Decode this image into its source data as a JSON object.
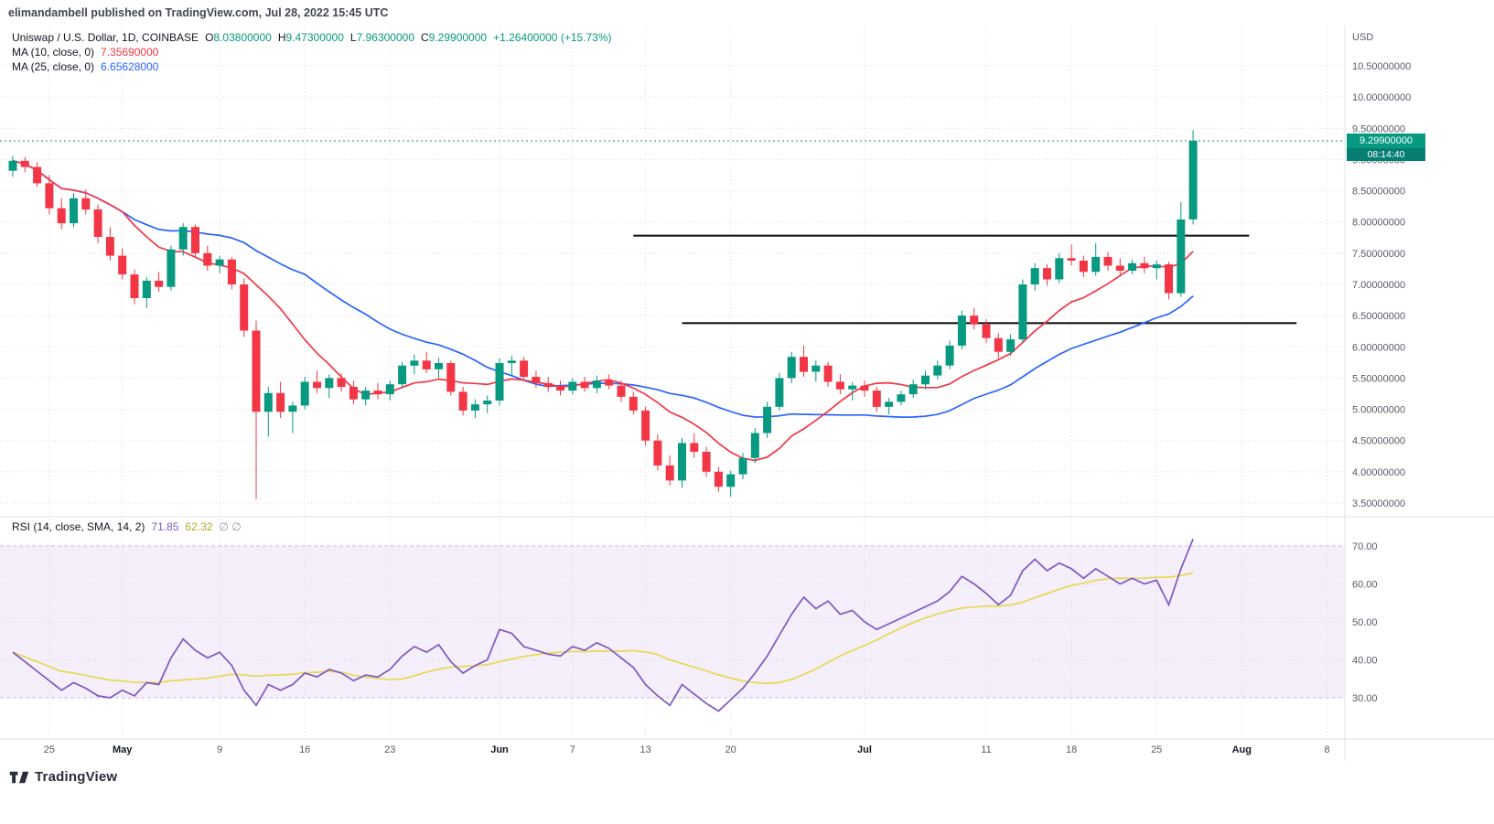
{
  "attribution": "elimandambell published on TradingView.com, Jul 28, 2022 15:45 UTC",
  "main_legend": {
    "symbol": "Uniswap / U.S. Dollar, 1D, COINBASE",
    "o_label": "O",
    "o": "8.03800000",
    "h_label": "H",
    "h": "9.47300000",
    "l_label": "L",
    "l": "7.96300000",
    "c_label": "C",
    "c": "9.29900000",
    "change": "+1.26400000 (+15.73%)",
    "ma10_label": "MA (10, close, 0)",
    "ma10_value": "7.35690000",
    "ma25_label": "MA (25, close, 0)",
    "ma25_value": "6.65628000"
  },
  "rsi_legend": {
    "label": "RSI (14, close, SMA, 14, 2)",
    "rsi_value": "71.85",
    "sma_value": "62.32",
    "extra": "∅ ∅"
  },
  "price_badge": {
    "price": "9.29900000",
    "countdown": "08:14:40"
  },
  "footer": {
    "brand": "TradingView"
  },
  "colors": {
    "up": "#089981",
    "down": "#f23645",
    "ma10": "#f23645",
    "ma25": "#2962ff",
    "rsi_line": "#7e57c2",
    "rsi_sma_line": "#e8d952",
    "rsi_band_fill": "#f4effa",
    "rsi_band_edge": "#c9b8e8",
    "grid": "#d7dae2",
    "border": "#e0e3eb",
    "trend_line": "#17181b",
    "axis_text": "#555a64",
    "axis_text_major": "#131722",
    "last_price_line": "#089981"
  },
  "chart_data": {
    "type": "candlestick",
    "title": "Uniswap / U.S. Dollar, 1D, COINBASE",
    "currency": "USD",
    "ohlc": {
      "open": 8.038,
      "high": 9.473,
      "low": 7.963,
      "close": 9.299,
      "change": 1.264,
      "change_pct": 15.73
    },
    "last_price": 9.299,
    "ylim": [
      3.5,
      10.5
    ],
    "price_axis": [
      "10.50000000",
      "10.00000000",
      "9.50000000",
      "9.00000000",
      "8.50000000",
      "8.00000000",
      "7.50000000",
      "7.00000000",
      "6.50000000",
      "6.00000000",
      "5.50000000",
      "5.00000000",
      "4.50000000",
      "4.00000000",
      "3.50000000"
    ],
    "rsi_axis": [
      "70.00",
      "60.00",
      "50.00",
      "40.00",
      "30.00"
    ],
    "time_axis": [
      {
        "i": 3,
        "label": "25"
      },
      {
        "i": 9,
        "label": "May",
        "major": true
      },
      {
        "i": 17,
        "label": "9"
      },
      {
        "i": 24,
        "label": "16"
      },
      {
        "i": 31,
        "label": "23"
      },
      {
        "i": 40,
        "label": "Jun",
        "major": true
      },
      {
        "i": 46,
        "label": "7"
      },
      {
        "i": 52,
        "label": "13"
      },
      {
        "i": 59,
        "label": "20"
      },
      {
        "i": 70,
        "label": "Jul",
        "major": true
      },
      {
        "i": 80,
        "label": "11"
      },
      {
        "i": 87,
        "label": "18"
      },
      {
        "i": 94,
        "label": "25"
      },
      {
        "i": 101,
        "label": "Aug",
        "major": true
      },
      {
        "i": 108,
        "label": "8"
      }
    ],
    "ma_overlays": [
      {
        "name": "MA 10",
        "period": 10,
        "value": 7.3569
      },
      {
        "name": "MA 25",
        "period": 25,
        "value": 6.65628
      }
    ],
    "trend_lines": [
      {
        "price": 7.78,
        "i1": 51,
        "i2": 101.6
      },
      {
        "price": 6.38,
        "i1": 55,
        "i2": 105.5
      }
    ],
    "rsi_current": 71.85,
    "rsi_sma_current": 62.32,
    "candles": [
      [
        8.82,
        9.06,
        8.72,
        8.98
      ],
      [
        8.98,
        9.04,
        8.8,
        8.88
      ],
      [
        8.88,
        8.96,
        8.56,
        8.62
      ],
      [
        8.62,
        8.75,
        8.12,
        8.22
      ],
      [
        8.22,
        8.38,
        7.88,
        7.98
      ],
      [
        7.98,
        8.46,
        7.92,
        8.38
      ],
      [
        8.38,
        8.52,
        8.12,
        8.2
      ],
      [
        8.2,
        8.28,
        7.66,
        7.76
      ],
      [
        7.76,
        7.92,
        7.38,
        7.46
      ],
      [
        7.46,
        7.58,
        7.08,
        7.16
      ],
      [
        7.16,
        7.24,
        6.68,
        6.78
      ],
      [
        6.78,
        7.12,
        6.62,
        7.06
      ],
      [
        7.06,
        7.2,
        6.88,
        6.96
      ],
      [
        6.96,
        7.62,
        6.9,
        7.56
      ],
      [
        7.56,
        7.98,
        7.46,
        7.92
      ],
      [
        7.92,
        7.96,
        7.42,
        7.5
      ],
      [
        7.5,
        7.62,
        7.22,
        7.3
      ],
      [
        7.3,
        7.46,
        7.18,
        7.4
      ],
      [
        7.4,
        7.44,
        6.92,
        7.0
      ],
      [
        7.0,
        7.1,
        6.16,
        6.26
      ],
      [
        6.26,
        6.42,
        3.56,
        4.96
      ],
      [
        4.96,
        5.36,
        4.56,
        5.26
      ],
      [
        5.26,
        5.44,
        4.86,
        4.96
      ],
      [
        4.96,
        5.12,
        4.62,
        5.06
      ],
      [
        5.06,
        5.52,
        5.0,
        5.44
      ],
      [
        5.44,
        5.62,
        5.26,
        5.34
      ],
      [
        5.34,
        5.56,
        5.18,
        5.5
      ],
      [
        5.5,
        5.58,
        5.28,
        5.36
      ],
      [
        5.36,
        5.46,
        5.08,
        5.16
      ],
      [
        5.16,
        5.36,
        5.06,
        5.3
      ],
      [
        5.3,
        5.42,
        5.16,
        5.24
      ],
      [
        5.24,
        5.46,
        5.14,
        5.4
      ],
      [
        5.4,
        5.76,
        5.34,
        5.7
      ],
      [
        5.7,
        5.88,
        5.56,
        5.78
      ],
      [
        5.78,
        5.92,
        5.58,
        5.64
      ],
      [
        5.64,
        5.82,
        5.5,
        5.74
      ],
      [
        5.74,
        5.78,
        5.22,
        5.28
      ],
      [
        5.28,
        5.36,
        4.9,
        4.98
      ],
      [
        4.98,
        5.16,
        4.86,
        5.08
      ],
      [
        5.08,
        5.22,
        4.94,
        5.14
      ],
      [
        5.14,
        5.82,
        5.06,
        5.74
      ],
      [
        5.74,
        5.86,
        5.54,
        5.78
      ],
      [
        5.78,
        5.84,
        5.46,
        5.52
      ],
      [
        5.52,
        5.62,
        5.34,
        5.42
      ],
      [
        5.42,
        5.52,
        5.28,
        5.36
      ],
      [
        5.36,
        5.46,
        5.22,
        5.3
      ],
      [
        5.3,
        5.5,
        5.24,
        5.44
      ],
      [
        5.44,
        5.52,
        5.28,
        5.34
      ],
      [
        5.34,
        5.54,
        5.26,
        5.46
      ],
      [
        5.46,
        5.56,
        5.32,
        5.38
      ],
      [
        5.38,
        5.46,
        5.12,
        5.2
      ],
      [
        5.2,
        5.28,
        4.92,
        4.98
      ],
      [
        4.98,
        5.04,
        4.42,
        4.5
      ],
      [
        4.5,
        4.6,
        4.02,
        4.1
      ],
      [
        4.1,
        4.26,
        3.78,
        3.86
      ],
      [
        3.86,
        4.54,
        3.74,
        4.46
      ],
      [
        4.46,
        4.62,
        4.22,
        4.32
      ],
      [
        4.32,
        4.4,
        3.92,
        4.0
      ],
      [
        4.0,
        4.08,
        3.68,
        3.76
      ],
      [
        3.76,
        4.02,
        3.6,
        3.96
      ],
      [
        3.96,
        4.3,
        3.88,
        4.22
      ],
      [
        4.22,
        4.7,
        4.14,
        4.62
      ],
      [
        4.62,
        5.12,
        4.54,
        5.04
      ],
      [
        5.04,
        5.58,
        4.98,
        5.5
      ],
      [
        5.5,
        5.92,
        5.42,
        5.84
      ],
      [
        5.84,
        6.02,
        5.52,
        5.6
      ],
      [
        5.6,
        5.78,
        5.44,
        5.7
      ],
      [
        5.7,
        5.76,
        5.36,
        5.44
      ],
      [
        5.44,
        5.56,
        5.24,
        5.32
      ],
      [
        5.32,
        5.44,
        5.14,
        5.38
      ],
      [
        5.38,
        5.46,
        5.2,
        5.3
      ],
      [
        5.3,
        5.36,
        4.96,
        5.04
      ],
      [
        5.04,
        5.18,
        4.92,
        5.12
      ],
      [
        5.12,
        5.3,
        5.06,
        5.24
      ],
      [
        5.24,
        5.48,
        5.18,
        5.4
      ],
      [
        5.4,
        5.62,
        5.32,
        5.54
      ],
      [
        5.54,
        5.78,
        5.48,
        5.7
      ],
      [
        5.7,
        6.1,
        5.64,
        6.02
      ],
      [
        6.02,
        6.58,
        5.96,
        6.5
      ],
      [
        6.5,
        6.62,
        6.28,
        6.36
      ],
      [
        6.36,
        6.44,
        6.06,
        6.14
      ],
      [
        6.14,
        6.22,
        5.82,
        5.92
      ],
      [
        5.92,
        6.2,
        5.86,
        6.12
      ],
      [
        6.12,
        7.08,
        6.06,
        7.0
      ],
      [
        7.0,
        7.34,
        6.9,
        7.26
      ],
      [
        7.26,
        7.32,
        6.98,
        7.08
      ],
      [
        7.08,
        7.5,
        7.02,
        7.42
      ],
      [
        7.42,
        7.64,
        7.3,
        7.38
      ],
      [
        7.38,
        7.46,
        7.12,
        7.2
      ],
      [
        7.2,
        7.66,
        7.14,
        7.44
      ],
      [
        7.44,
        7.52,
        7.22,
        7.3
      ],
      [
        7.3,
        7.42,
        7.12,
        7.22
      ],
      [
        7.22,
        7.4,
        7.16,
        7.34
      ],
      [
        7.34,
        7.44,
        7.18,
        7.26
      ],
      [
        7.26,
        7.38,
        7.08,
        7.32
      ],
      [
        7.32,
        7.36,
        6.76,
        6.86
      ],
      [
        6.86,
        8.32,
        6.8,
        8.04
      ],
      [
        8.04,
        9.47,
        7.96,
        9.3
      ]
    ],
    "rsi": [
      42,
      39.5,
      37,
      34.5,
      32,
      34,
      32.5,
      30.5,
      30,
      32,
      30.5,
      34,
      33.5,
      40.5,
      45.5,
      42.5,
      40.5,
      42,
      38.5,
      32,
      28,
      33.5,
      32,
      33.5,
      36.5,
      35.5,
      37.5,
      36.5,
      34.5,
      36,
      35.5,
      37.5,
      41,
      43.5,
      42,
      44,
      39.5,
      36.5,
      38.5,
      40,
      48,
      47,
      43.5,
      42.5,
      41.5,
      41,
      43.5,
      42.5,
      44.5,
      43,
      40.5,
      38,
      33.5,
      30.5,
      28,
      33.5,
      31,
      28.5,
      26.5,
      29.5,
      32.5,
      36.5,
      41,
      46.5,
      52,
      56.5,
      53.5,
      55.5,
      52,
      53,
      50,
      48,
      49.5,
      51,
      52.5,
      54,
      55.5,
      58,
      62,
      60,
      57.5,
      54.5,
      57,
      63.5,
      66.5,
      63.5,
      65.5,
      64,
      61.5,
      64,
      62,
      60,
      61.5,
      60,
      61,
      54.5,
      64,
      71.85
    ]
  }
}
